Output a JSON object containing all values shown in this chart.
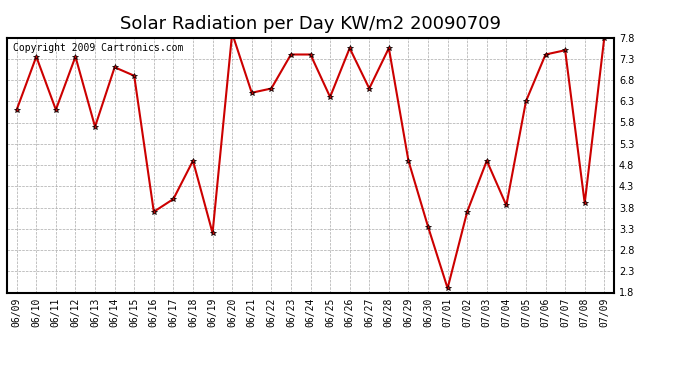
{
  "title": "Solar Radiation per Day KW/m2 20090709",
  "copyright_text": "Copyright 2009 Cartronics.com",
  "dates": [
    "06/09",
    "06/10",
    "06/11",
    "06/12",
    "06/13",
    "06/14",
    "06/15",
    "06/16",
    "06/17",
    "06/18",
    "06/19",
    "06/20",
    "06/21",
    "06/22",
    "06/23",
    "06/24",
    "06/25",
    "06/26",
    "06/27",
    "06/28",
    "06/29",
    "06/30",
    "07/01",
    "07/02",
    "07/03",
    "07/04",
    "07/05",
    "07/06",
    "07/07",
    "07/08",
    "07/09"
  ],
  "values": [
    6.1,
    7.35,
    6.1,
    7.35,
    5.7,
    7.1,
    6.9,
    3.7,
    4.0,
    4.9,
    3.2,
    7.9,
    6.5,
    6.6,
    7.4,
    7.4,
    6.4,
    7.55,
    6.6,
    7.55,
    4.9,
    3.35,
    1.9,
    3.7,
    4.9,
    3.85,
    6.3,
    7.4,
    7.5,
    3.9,
    7.8
  ],
  "line_color": "#cc0000",
  "marker": "*",
  "marker_color": "#000000",
  "marker_size": 4,
  "background_color": "#ffffff",
  "plot_bg_color": "#ffffff",
  "grid_color": "#aaaaaa",
  "ylim": [
    1.8,
    7.8
  ],
  "yticks": [
    1.8,
    2.3,
    2.8,
    3.3,
    3.8,
    4.3,
    4.8,
    5.3,
    5.8,
    6.3,
    6.8,
    7.3,
    7.8
  ],
  "title_fontsize": 13,
  "copyright_fontsize": 7,
  "tick_fontsize": 7,
  "title_color": "#000000",
  "copyright_color": "#000000"
}
